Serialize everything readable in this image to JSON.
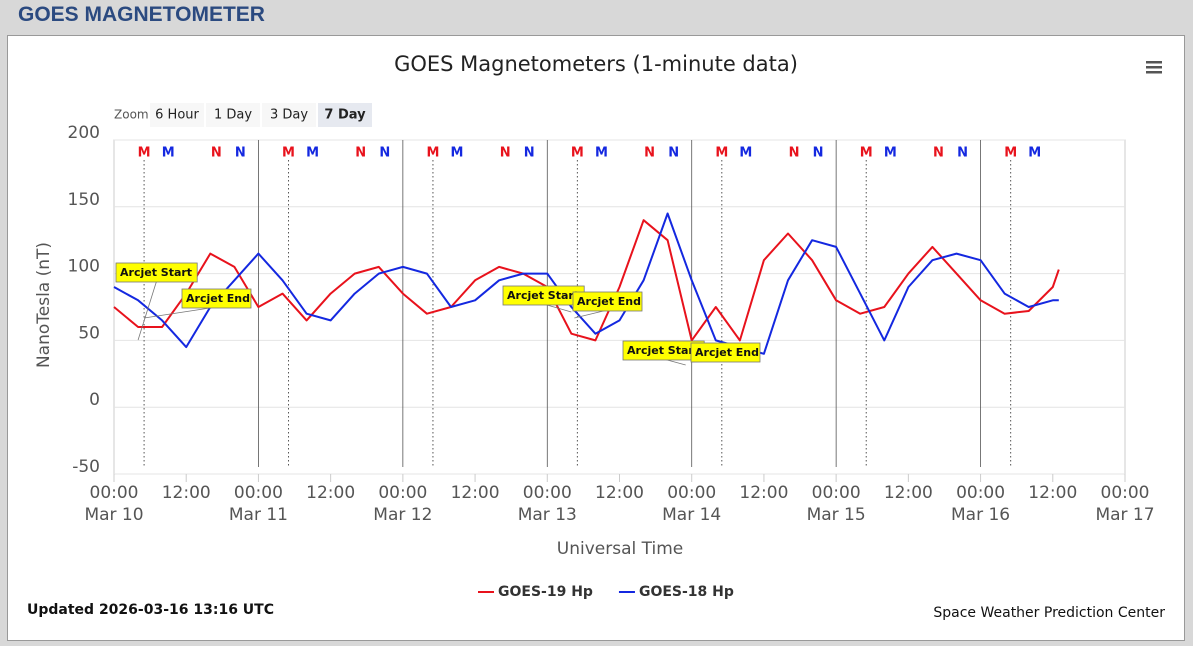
{
  "header": {
    "title": "GOES MAGNETOMETER"
  },
  "zoom": {
    "label": "Zoom",
    "buttons": [
      "6 Hour",
      "1 Day",
      "3 Day",
      "7 Day"
    ],
    "selected": "7 Day"
  },
  "chart_data": {
    "type": "line",
    "title": "GOES Magnetometers (1-minute data)",
    "x_label": "Universal Time",
    "y_label": "NanoTesla (nT)",
    "x": [
      "Mar 10 00:00",
      "Mar 10 04:00",
      "Mar 10 08:00",
      "Mar 10 12:00",
      "Mar 10 16:00",
      "Mar 10 20:00",
      "Mar 11 00:00",
      "Mar 11 04:00",
      "Mar 11 08:00",
      "Mar 11 12:00",
      "Mar 11 16:00",
      "Mar 11 20:00",
      "Mar 12 00:00",
      "Mar 12 04:00",
      "Mar 12 08:00",
      "Mar 12 12:00",
      "Mar 12 16:00",
      "Mar 12 20:00",
      "Mar 13 00:00",
      "Mar 13 04:00",
      "Mar 13 08:00",
      "Mar 13 12:00",
      "Mar 13 16:00",
      "Mar 13 20:00",
      "Mar 14 00:00",
      "Mar 14 04:00",
      "Mar 14 08:00",
      "Mar 14 12:00",
      "Mar 14 16:00",
      "Mar 14 20:00",
      "Mar 15 00:00",
      "Mar 15 04:00",
      "Mar 15 08:00",
      "Mar 15 12:00",
      "Mar 15 16:00",
      "Mar 15 20:00",
      "Mar 16 00:00",
      "Mar 16 04:00",
      "Mar 16 08:00",
      "Mar 16 12:00",
      "Mar 16 13:00"
    ],
    "series": [
      {
        "name": "GOES-19 Hp",
        "color": "#e8121c",
        "values": [
          75,
          60,
          60,
          85,
          115,
          105,
          75,
          85,
          65,
          85,
          100,
          105,
          85,
          70,
          75,
          95,
          105,
          100,
          90,
          55,
          50,
          90,
          140,
          125,
          50,
          75,
          50,
          110,
          130,
          110,
          80,
          70,
          75,
          100,
          120,
          100,
          80,
          70,
          72,
          90,
          103
        ]
      },
      {
        "name": "GOES-18 Hp",
        "color": "#1428e0",
        "values": [
          90,
          80,
          65,
          45,
          75,
          95,
          115,
          95,
          70,
          65,
          85,
          100,
          105,
          100,
          75,
          80,
          95,
          100,
          100,
          75,
          55,
          65,
          95,
          145,
          95,
          50,
          45,
          40,
          95,
          125,
          120,
          85,
          50,
          90,
          110,
          115,
          110,
          85,
          75,
          80,
          80
        ]
      }
    ],
    "xlim": [
      "Mar 10 00:00",
      "Mar 17 00:00"
    ],
    "xticks": [
      {
        "value": "Mar 10 00:00",
        "label": "00:00\nMar 10"
      },
      {
        "value": "Mar 10 12:00",
        "label": "12:00"
      },
      {
        "value": "Mar 11 00:00",
        "label": "00:00\nMar 11"
      },
      {
        "value": "Mar 11 12:00",
        "label": "12:00"
      },
      {
        "value": "Mar 12 00:00",
        "label": "00:00\nMar 12"
      },
      {
        "value": "Mar 12 12:00",
        "label": "12:00"
      },
      {
        "value": "Mar 13 00:00",
        "label": "00:00\nMar 13"
      },
      {
        "value": "Mar 13 12:00",
        "label": "12:00"
      },
      {
        "value": "Mar 14 00:00",
        "label": "00:00\nMar 14"
      },
      {
        "value": "Mar 14 12:00",
        "label": "12:00"
      },
      {
        "value": "Mar 15 00:00",
        "label": "00:00\nMar 15"
      },
      {
        "value": "Mar 15 12:00",
        "label": "12:00"
      },
      {
        "value": "Mar 16 00:00",
        "label": "00:00\nMar 16"
      },
      {
        "value": "Mar 16 12:00",
        "label": "12:00"
      },
      {
        "value": "Mar 17 00:00",
        "label": "00:00\nMar 17"
      }
    ],
    "ylim": [
      -50,
      200
    ],
    "yticks": [
      -50,
      0,
      50,
      100,
      150,
      200
    ],
    "grid": true,
    "markers": [
      {
        "label": "M",
        "color": "#e8121c",
        "x": "Mar 10 05:00"
      },
      {
        "label": "M",
        "color": "#1428e0",
        "x": "Mar 10 09:00"
      },
      {
        "label": "N",
        "color": "#e8121c",
        "x": "Mar 10 17:00"
      },
      {
        "label": "N",
        "color": "#1428e0",
        "x": "Mar 10 21:00"
      },
      {
        "label": "M",
        "color": "#e8121c",
        "x": "Mar 11 05:00"
      },
      {
        "label": "M",
        "color": "#1428e0",
        "x": "Mar 11 09:00"
      },
      {
        "label": "N",
        "color": "#e8121c",
        "x": "Mar 11 17:00"
      },
      {
        "label": "N",
        "color": "#1428e0",
        "x": "Mar 11 21:00"
      },
      {
        "label": "M",
        "color": "#e8121c",
        "x": "Mar 12 05:00"
      },
      {
        "label": "M",
        "color": "#1428e0",
        "x": "Mar 12 09:00"
      },
      {
        "label": "N",
        "color": "#e8121c",
        "x": "Mar 12 17:00"
      },
      {
        "label": "N",
        "color": "#1428e0",
        "x": "Mar 12 21:00"
      },
      {
        "label": "M",
        "color": "#e8121c",
        "x": "Mar 13 05:00"
      },
      {
        "label": "M",
        "color": "#1428e0",
        "x": "Mar 13 09:00"
      },
      {
        "label": "N",
        "color": "#e8121c",
        "x": "Mar 13 17:00"
      },
      {
        "label": "N",
        "color": "#1428e0",
        "x": "Mar 13 21:00"
      },
      {
        "label": "M",
        "color": "#e8121c",
        "x": "Mar 14 05:00"
      },
      {
        "label": "M",
        "color": "#1428e0",
        "x": "Mar 14 09:00"
      },
      {
        "label": "N",
        "color": "#e8121c",
        "x": "Mar 14 17:00"
      },
      {
        "label": "N",
        "color": "#1428e0",
        "x": "Mar 14 21:00"
      },
      {
        "label": "M",
        "color": "#e8121c",
        "x": "Mar 15 05:00"
      },
      {
        "label": "M",
        "color": "#1428e0",
        "x": "Mar 15 09:00"
      },
      {
        "label": "N",
        "color": "#e8121c",
        "x": "Mar 15 17:00"
      },
      {
        "label": "N",
        "color": "#1428e0",
        "x": "Mar 15 21:00"
      },
      {
        "label": "M",
        "color": "#e8121c",
        "x": "Mar 16 05:00"
      },
      {
        "label": "M",
        "color": "#1428e0",
        "x": "Mar 16 09:00"
      }
    ],
    "annotations": [
      {
        "text": "Arcjet Start",
        "x": "Mar 10 04:00"
      },
      {
        "text": "Arcjet End",
        "x": "Mar 10 05:00"
      },
      {
        "text": "Arcjet Start",
        "x": "Mar 13 04:00"
      },
      {
        "text": "Arcjet End",
        "x": "Mar 13 04:30"
      },
      {
        "text": "Arcjet Start",
        "x": "Mar 13 23:00"
      },
      {
        "text": "Arcjet End",
        "x": "Mar 14 00:00"
      }
    ]
  },
  "footer": {
    "updated": "Updated 2026-03-16 13:16 UTC",
    "credit": "Space Weather Prediction Center"
  }
}
